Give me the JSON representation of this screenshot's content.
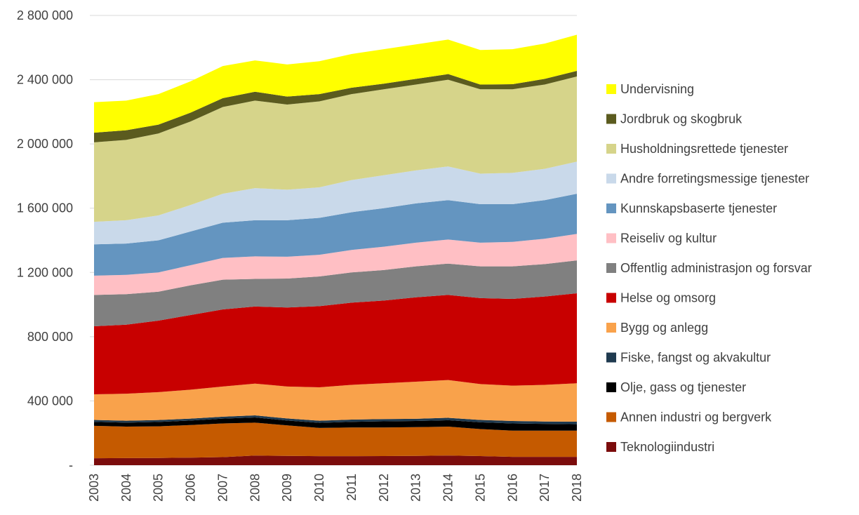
{
  "chart_data": {
    "type": "stacked_area",
    "categories": [
      "2003",
      "2004",
      "2005",
      "2006",
      "2007",
      "2008",
      "2009",
      "2010",
      "2011",
      "2012",
      "2013",
      "2014",
      "2015",
      "2016",
      "2017",
      "2018"
    ],
    "series": [
      {
        "name": "Teknologiindustri",
        "color": "#7b0c0c",
        "values": [
          43000,
          44000,
          45000,
          47000,
          50000,
          60000,
          58000,
          56000,
          56000,
          57000,
          58000,
          60000,
          57000,
          52000,
          52000,
          52000
        ]
      },
      {
        "name": "Annen industri og bergverk",
        "color": "#c55a00",
        "values": [
          202000,
          196000,
          197000,
          203000,
          210000,
          205000,
          190000,
          176000,
          179000,
          178000,
          179000,
          180000,
          168000,
          163000,
          163000,
          163000
        ]
      },
      {
        "name": "Olje, gass og tjenester",
        "color": "#000000",
        "values": [
          25000,
          25000,
          27000,
          28000,
          30000,
          32000,
          30000,
          32000,
          35000,
          38000,
          38000,
          40000,
          42000,
          45000,
          42000,
          40000
        ]
      },
      {
        "name": "Fiske, fangst og akvakultur",
        "color": "#1f3a4f",
        "values": [
          12000,
          12000,
          12000,
          12000,
          12000,
          13000,
          13000,
          13000,
          14000,
          14000,
          14000,
          15000,
          15000,
          15000,
          15000,
          16000
        ]
      },
      {
        "name": "Bygg og anlegg",
        "color": "#f9a24b",
        "values": [
          159000,
          168000,
          174000,
          180000,
          188000,
          198000,
          199000,
          208000,
          216000,
          223000,
          231000,
          235000,
          223000,
          220000,
          228000,
          239000
        ]
      },
      {
        "name": "Helse og omsorg",
        "color": "#c80000",
        "values": [
          424000,
          430000,
          445000,
          465000,
          480000,
          480000,
          492000,
          505000,
          512000,
          515000,
          525000,
          530000,
          535000,
          540000,
          550000,
          560000
        ]
      },
      {
        "name": "Offentlig administrasjon og forsvar",
        "color": "#808080",
        "values": [
          195000,
          190000,
          180000,
          185000,
          185000,
          172000,
          180000,
          185000,
          188000,
          190000,
          193000,
          195000,
          198000,
          203000,
          202000,
          205000
        ]
      },
      {
        "name": "Reiseliv og kultur",
        "color": "#ffbfc4",
        "values": [
          120000,
          120000,
          120000,
          125000,
          135000,
          140000,
          136000,
          135000,
          140000,
          145000,
          147000,
          150000,
          147000,
          152000,
          158000,
          165000
        ]
      },
      {
        "name": "Kunnskapsbaserte tjenester",
        "color": "#6495c0",
        "values": [
          195000,
          195000,
          200000,
          210000,
          220000,
          225000,
          227000,
          230000,
          235000,
          240000,
          245000,
          245000,
          240000,
          235000,
          240000,
          250000
        ]
      },
      {
        "name": "Andre forretingsmessige tjenester",
        "color": "#c9d9ea",
        "values": [
          140000,
          145000,
          155000,
          165000,
          180000,
          200000,
          190000,
          190000,
          200000,
          205000,
          205000,
          210000,
          190000,
          195000,
          195000,
          200000
        ]
      },
      {
        "name": "Husholdningsrettede tjenester",
        "color": "#d6d48a",
        "values": [
          495000,
          500000,
          510000,
          520000,
          540000,
          545000,
          530000,
          535000,
          535000,
          535000,
          535000,
          540000,
          525000,
          520000,
          525000,
          530000
        ]
      },
      {
        "name": "Jordbruk og skogbruk",
        "color": "#5b5b1f",
        "values": [
          60000,
          60000,
          55000,
          55000,
          55000,
          55000,
          50000,
          45000,
          40000,
          35000,
          35000,
          35000,
          30000,
          32000,
          35000,
          35000
        ]
      },
      {
        "name": "Undervisning",
        "color": "#ffff00",
        "values": [
          190000,
          185000,
          190000,
          195000,
          200000,
          195000,
          200000,
          205000,
          210000,
          215000,
          215000,
          215000,
          215000,
          218000,
          220000,
          225000
        ]
      }
    ],
    "ylim": [
      0,
      2800000
    ],
    "yticks": [
      {
        "value": 0,
        "label": "-"
      },
      {
        "value": 400000,
        "label": "400 000"
      },
      {
        "value": 800000,
        "label": "800 000"
      },
      {
        "value": 1200000,
        "label": "1 200 000"
      },
      {
        "value": 1600000,
        "label": "1 600 000"
      },
      {
        "value": 2000000,
        "label": "2 000 000"
      },
      {
        "value": 2400000,
        "label": "2 400 000"
      },
      {
        "value": 2800000,
        "label": "2 800 000"
      }
    ],
    "grid": true,
    "legend": "right"
  }
}
